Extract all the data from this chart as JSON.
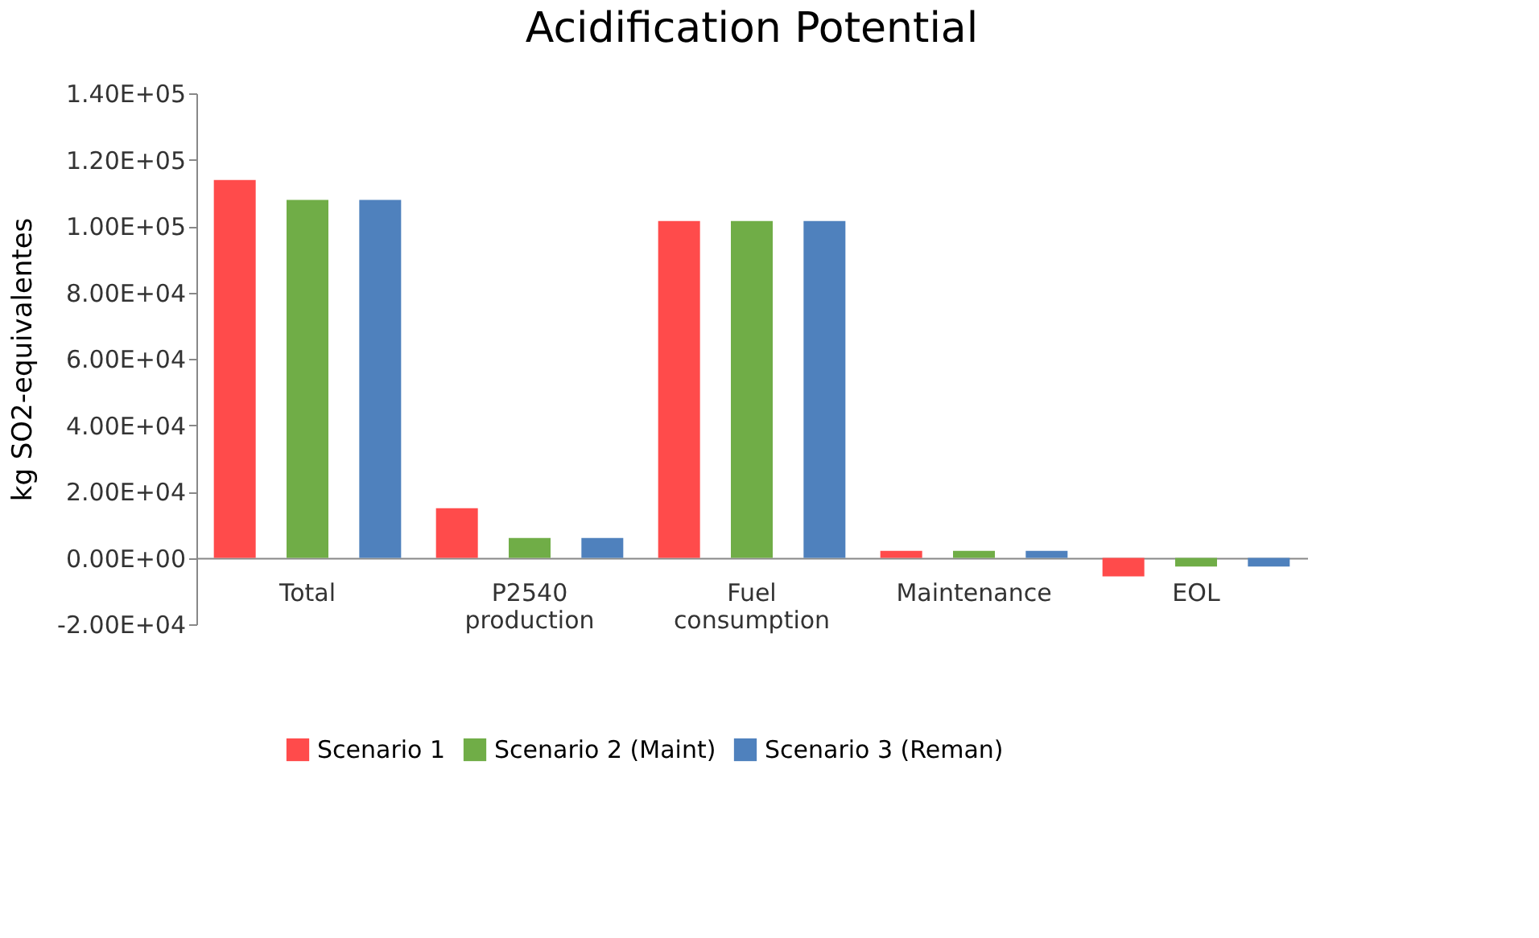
{
  "chart_data": {
    "type": "bar",
    "title": "Acidification Potential",
    "ylabel": "kg SO2-equivalentes",
    "categories": [
      "Total",
      "P2540 production",
      "Fuel consumption",
      "Maintenance",
      "EOL"
    ],
    "series": [
      {
        "name": "Scenario 1",
        "color": "#ff4b4b",
        "values": [
          113900,
          15000,
          101500,
          2100,
          -5600
        ]
      },
      {
        "name": "Scenario 2 (Maint)",
        "color": "#70ad47",
        "values": [
          107900,
          6000,
          101500,
          2100,
          -2600
        ]
      },
      {
        "name": "Scenario 3 (Reman)",
        "color": "#4f81bd",
        "values": [
          107900,
          6000,
          101500,
          2100,
          -2600
        ]
      }
    ],
    "ylim": [
      -20000,
      140000
    ],
    "yticks": [
      {
        "value": -20000,
        "label": "-2.00E+04"
      },
      {
        "value": 0,
        "label": "0.00E+00"
      },
      {
        "value": 20000,
        "label": "2.00E+04"
      },
      {
        "value": 40000,
        "label": "4.00E+04"
      },
      {
        "value": 60000,
        "label": "6.00E+04"
      },
      {
        "value": 80000,
        "label": "8.00E+04"
      },
      {
        "value": 100000,
        "label": "1.00E+05"
      },
      {
        "value": 120000,
        "label": "1.20E+05"
      },
      {
        "value": 140000,
        "label": "1.40E+05"
      }
    ],
    "grid": false,
    "legend": "bottom"
  }
}
